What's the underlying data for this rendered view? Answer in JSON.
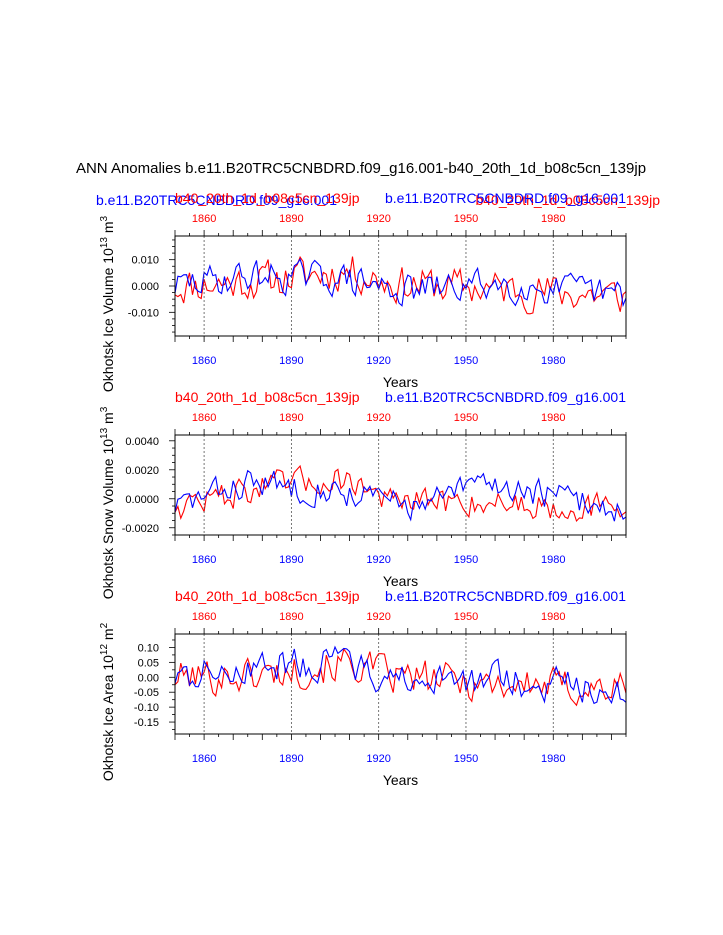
{
  "page_title": "ANN Anomalies b.e11.B20TRC5CNBDRD.f09_g16.001-b40_20th_1d_b08c5cn_139jp",
  "top_legend": {
    "run_a": "b.e11.B20TRC5CNBDRD.f09_g16.001",
    "run_b": "b40_20th_1d_b08c5cn_139jp",
    "run_a_color": "#0000ff",
    "run_b_color": "#ff0000"
  },
  "chart_data": [
    {
      "type": "line",
      "title_left": "b40_20th_1d_b08c5cn_139jp",
      "title_right": "b.e11.B20TRC5CNBDRD.f09_g16.001",
      "ylabel": "Okhotsk Ice Volume 10^13 m^3",
      "ylabel_text": "Okhotsk Ice Volume 10",
      "ylabel_exp1": "13",
      "ylabel_unit": " m",
      "ylabel_exp2": "3",
      "xlabel": "Years",
      "xlim": [
        1850,
        2005
      ],
      "ylim": [
        -0.019,
        0.019
      ],
      "yticks": [
        -0.01,
        0.0,
        0.01
      ],
      "yticklabels": [
        "-0.010",
        "0.000",
        "0.010"
      ],
      "yminor": 0.0025,
      "xticks": [
        1860,
        1890,
        1920,
        1950,
        1980
      ],
      "xticklabels": [
        "1860",
        "1890",
        "1920",
        "1950",
        "1980"
      ],
      "series": [
        {
          "name": "b40_20th_1d_b08c5cn_139jp",
          "color": "#ff0000",
          "seed": 11,
          "amp": 0.0065,
          "trend": [
            [
              1850,
              0.0
            ],
            [
              1880,
              0.002
            ],
            [
              1910,
              0.006
            ],
            [
              1925,
              0.001
            ],
            [
              1960,
              -0.001
            ],
            [
              2005,
              -0.004
            ]
          ]
        },
        {
          "name": "b.e11.B20TRC5CNBDRD.f09_g16.001",
          "color": "#0000ff",
          "seed": 29,
          "amp": 0.0055,
          "trend": [
            [
              1850,
              0.0
            ],
            [
              1875,
              0.004
            ],
            [
              1905,
              0.003
            ],
            [
              1930,
              -0.002
            ],
            [
              1960,
              0.001
            ],
            [
              2005,
              -0.004
            ]
          ]
        }
      ]
    },
    {
      "type": "line",
      "title_left": "b40_20th_1d_b08c5cn_139jp",
      "title_right": "b.e11.B20TRC5CNBDRD.f09_g16.001",
      "ylabel": "Okhotsk Snow Volume 10^13 m^3",
      "ylabel_text": "Okhotsk Snow Volume 10",
      "ylabel_exp1": "13",
      "ylabel_unit": " m",
      "ylabel_exp2": "3",
      "xlabel": "Years",
      "xlim": [
        1850,
        2005
      ],
      "ylim": [
        -0.0025,
        0.0044
      ],
      "yticks": [
        -0.002,
        0.0,
        0.002,
        0.004
      ],
      "yticklabels": [
        "-0.0020",
        "0.0000",
        "0.0020",
        "0.0040"
      ],
      "yminor": 0.0005,
      "xticks": [
        1860,
        1890,
        1920,
        1950,
        1980
      ],
      "xticklabels": [
        "1860",
        "1890",
        "1920",
        "1950",
        "1980"
      ],
      "series": [
        {
          "name": "b40_20th_1d_b08c5cn_139jp",
          "color": "#ff0000",
          "seed": 47,
          "amp": 0.0009,
          "trend": [
            [
              1850,
              -0.0005
            ],
            [
              1880,
              0.0008
            ],
            [
              1910,
              0.0014
            ],
            [
              1925,
              -0.0003
            ],
            [
              1960,
              -0.0002
            ],
            [
              2005,
              -0.0008
            ]
          ]
        },
        {
          "name": "b.e11.B20TRC5CNBDRD.f09_g16.001",
          "color": "#0000ff",
          "seed": 83,
          "amp": 0.0009,
          "trend": [
            [
              1850,
              -0.0005
            ],
            [
              1875,
              0.0011
            ],
            [
              1905,
              0.0006
            ],
            [
              1935,
              -0.0006
            ],
            [
              1955,
              0.0012
            ],
            [
              2005,
              -0.0008
            ]
          ]
        }
      ]
    },
    {
      "type": "line",
      "title_left": "b40_20th_1d_b08c5cn_139jp",
      "title_right": "b.e11.B20TRC5CNBDRD.f09_g16.001",
      "ylabel": "Okhotsk Ice Area 10^12 m^2",
      "ylabel_text": "Okhotsk Ice Area 10",
      "ylabel_exp1": "12",
      "ylabel_unit": " m",
      "ylabel_exp2": "2",
      "xlabel": "Years",
      "xlim": [
        1850,
        2005
      ],
      "ylim": [
        -0.19,
        0.145
      ],
      "yticks": [
        -0.15,
        -0.1,
        -0.05,
        0.0,
        0.05,
        0.1
      ],
      "yticklabels": [
        "-0.15",
        "-0.10",
        "-0.05",
        "0.00",
        "0.05",
        "0.10"
      ],
      "yminor": 0.025,
      "xticks": [
        1860,
        1890,
        1920,
        1950,
        1980
      ],
      "xticklabels": [
        "1860",
        "1890",
        "1920",
        "1950",
        "1980"
      ],
      "series": [
        {
          "name": "b40_20th_1d_b08c5cn_139jp",
          "color": "#ff0000",
          "seed": 101,
          "amp": 0.055,
          "trend": [
            [
              1850,
              0.0
            ],
            [
              1880,
              0.01
            ],
            [
              1910,
              0.05
            ],
            [
              1925,
              0.0
            ],
            [
              1960,
              -0.02
            ],
            [
              2005,
              -0.04
            ]
          ]
        },
        {
          "name": "b.e11.B20TRC5CNBDRD.f09_g16.001",
          "color": "#0000ff",
          "seed": 137,
          "amp": 0.05,
          "trend": [
            [
              1850,
              0.0
            ],
            [
              1875,
              0.04
            ],
            [
              1905,
              0.05
            ],
            [
              1930,
              -0.02
            ],
            [
              1960,
              -0.01
            ],
            [
              2005,
              -0.04
            ]
          ]
        }
      ]
    }
  ]
}
